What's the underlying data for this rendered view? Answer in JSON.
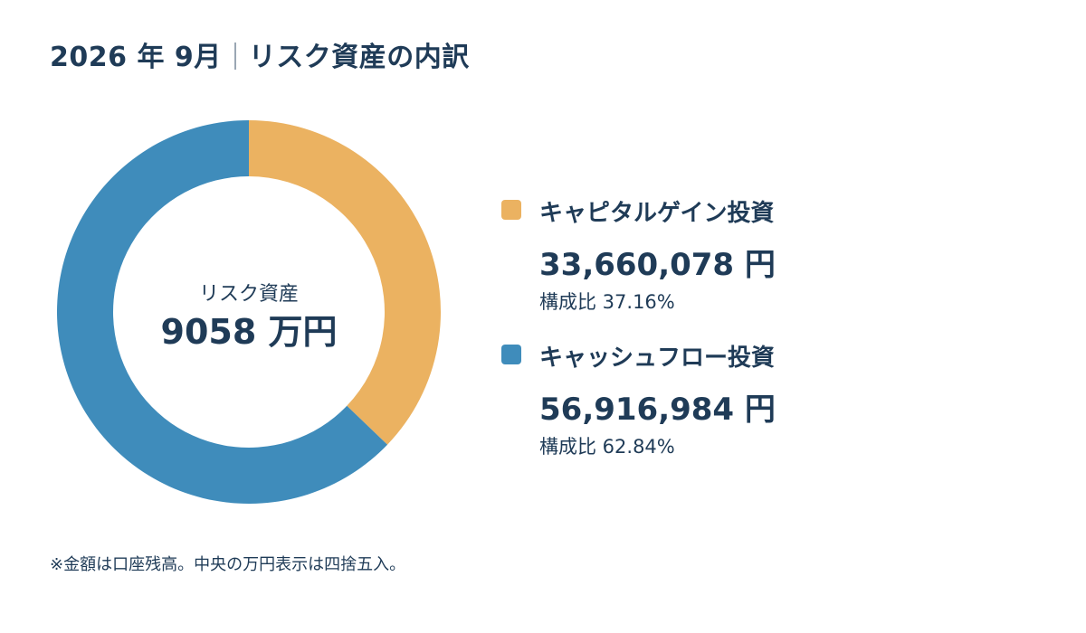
{
  "title": {
    "period": "2026 年 9月",
    "subject": "リスク資産の内訳"
  },
  "center": {
    "label": "リスク資産",
    "value": "9058 万円"
  },
  "legend": [
    {
      "name": "キャピタルゲイン投資",
      "amount": "33,660,078 円",
      "share": "構成比 37.16%",
      "color": "#ebb261"
    },
    {
      "name": "キャッシュフロー投資",
      "amount": "56,916,984 円",
      "share": "構成比 62.84%",
      "color": "#3f8cbb"
    }
  ],
  "footnote": "※金額は口座残高。中央の万円表示は四捨五入。",
  "chart_data": {
    "type": "pie",
    "categories": [
      "キャピタルゲイン投資",
      "キャッシュフロー投資"
    ],
    "values": [
      33660078,
      56916984
    ],
    "percentages": [
      37.16,
      62.84
    ],
    "colors": [
      "#ebb261",
      "#3f8cbb"
    ],
    "donut": true,
    "start": "top",
    "direction": "clockwise",
    "legend": "right"
  }
}
